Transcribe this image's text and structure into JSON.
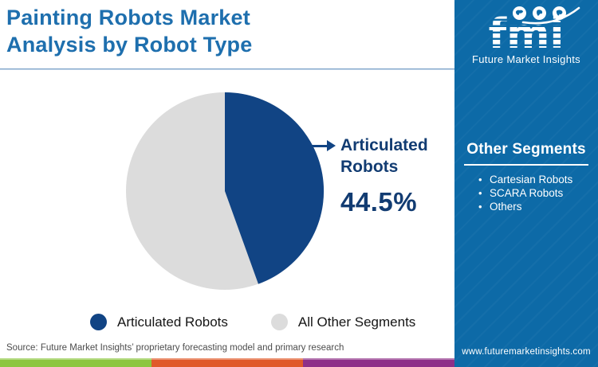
{
  "header": {
    "title_line1": "Painting Robots Market",
    "title_line2": "Analysis by Robot Type"
  },
  "chart_data": {
    "type": "pie",
    "title": "Painting Robots Market Analysis by Robot Type",
    "slices": [
      {
        "label": "Articulated Robots",
        "value": 44.5,
        "color": "#114484"
      },
      {
        "label": "All Other Segments",
        "value": 55.5,
        "color": "#dcdcdc"
      }
    ],
    "start_angle_deg": 0,
    "direction": "clockwise",
    "legend_position": "bottom",
    "annotation": "Articulated Robots 44.5%"
  },
  "callout": {
    "label_line1": "Articulated",
    "label_line2": "Robots",
    "value": "44.5%"
  },
  "sidebar": {
    "logo": {
      "text": "fmi",
      "subtitle": "Future Market Insights",
      "globe_icons": [
        "globe-americas-icon",
        "globe-europe-icon",
        "globe-asia-icon"
      ]
    },
    "other_segments": {
      "heading": "Other Segments",
      "items": [
        "Cartesian Robots",
        "SCARA Robots",
        "Others"
      ]
    },
    "website": "www.futuremarketinsights.com"
  },
  "footer": {
    "source": "Source: Future Market Insights’ proprietary forecasting model and primary research",
    "bar_colors": [
      "#8dc63f",
      "#e0592a",
      "#8e2f88"
    ]
  },
  "colors": {
    "title_blue": "#1e6fae",
    "sidebar_blue": "#0d6aa7",
    "pie_navy": "#114484",
    "pie_gray": "#dcdcdc",
    "callout_navy": "#123c72"
  }
}
